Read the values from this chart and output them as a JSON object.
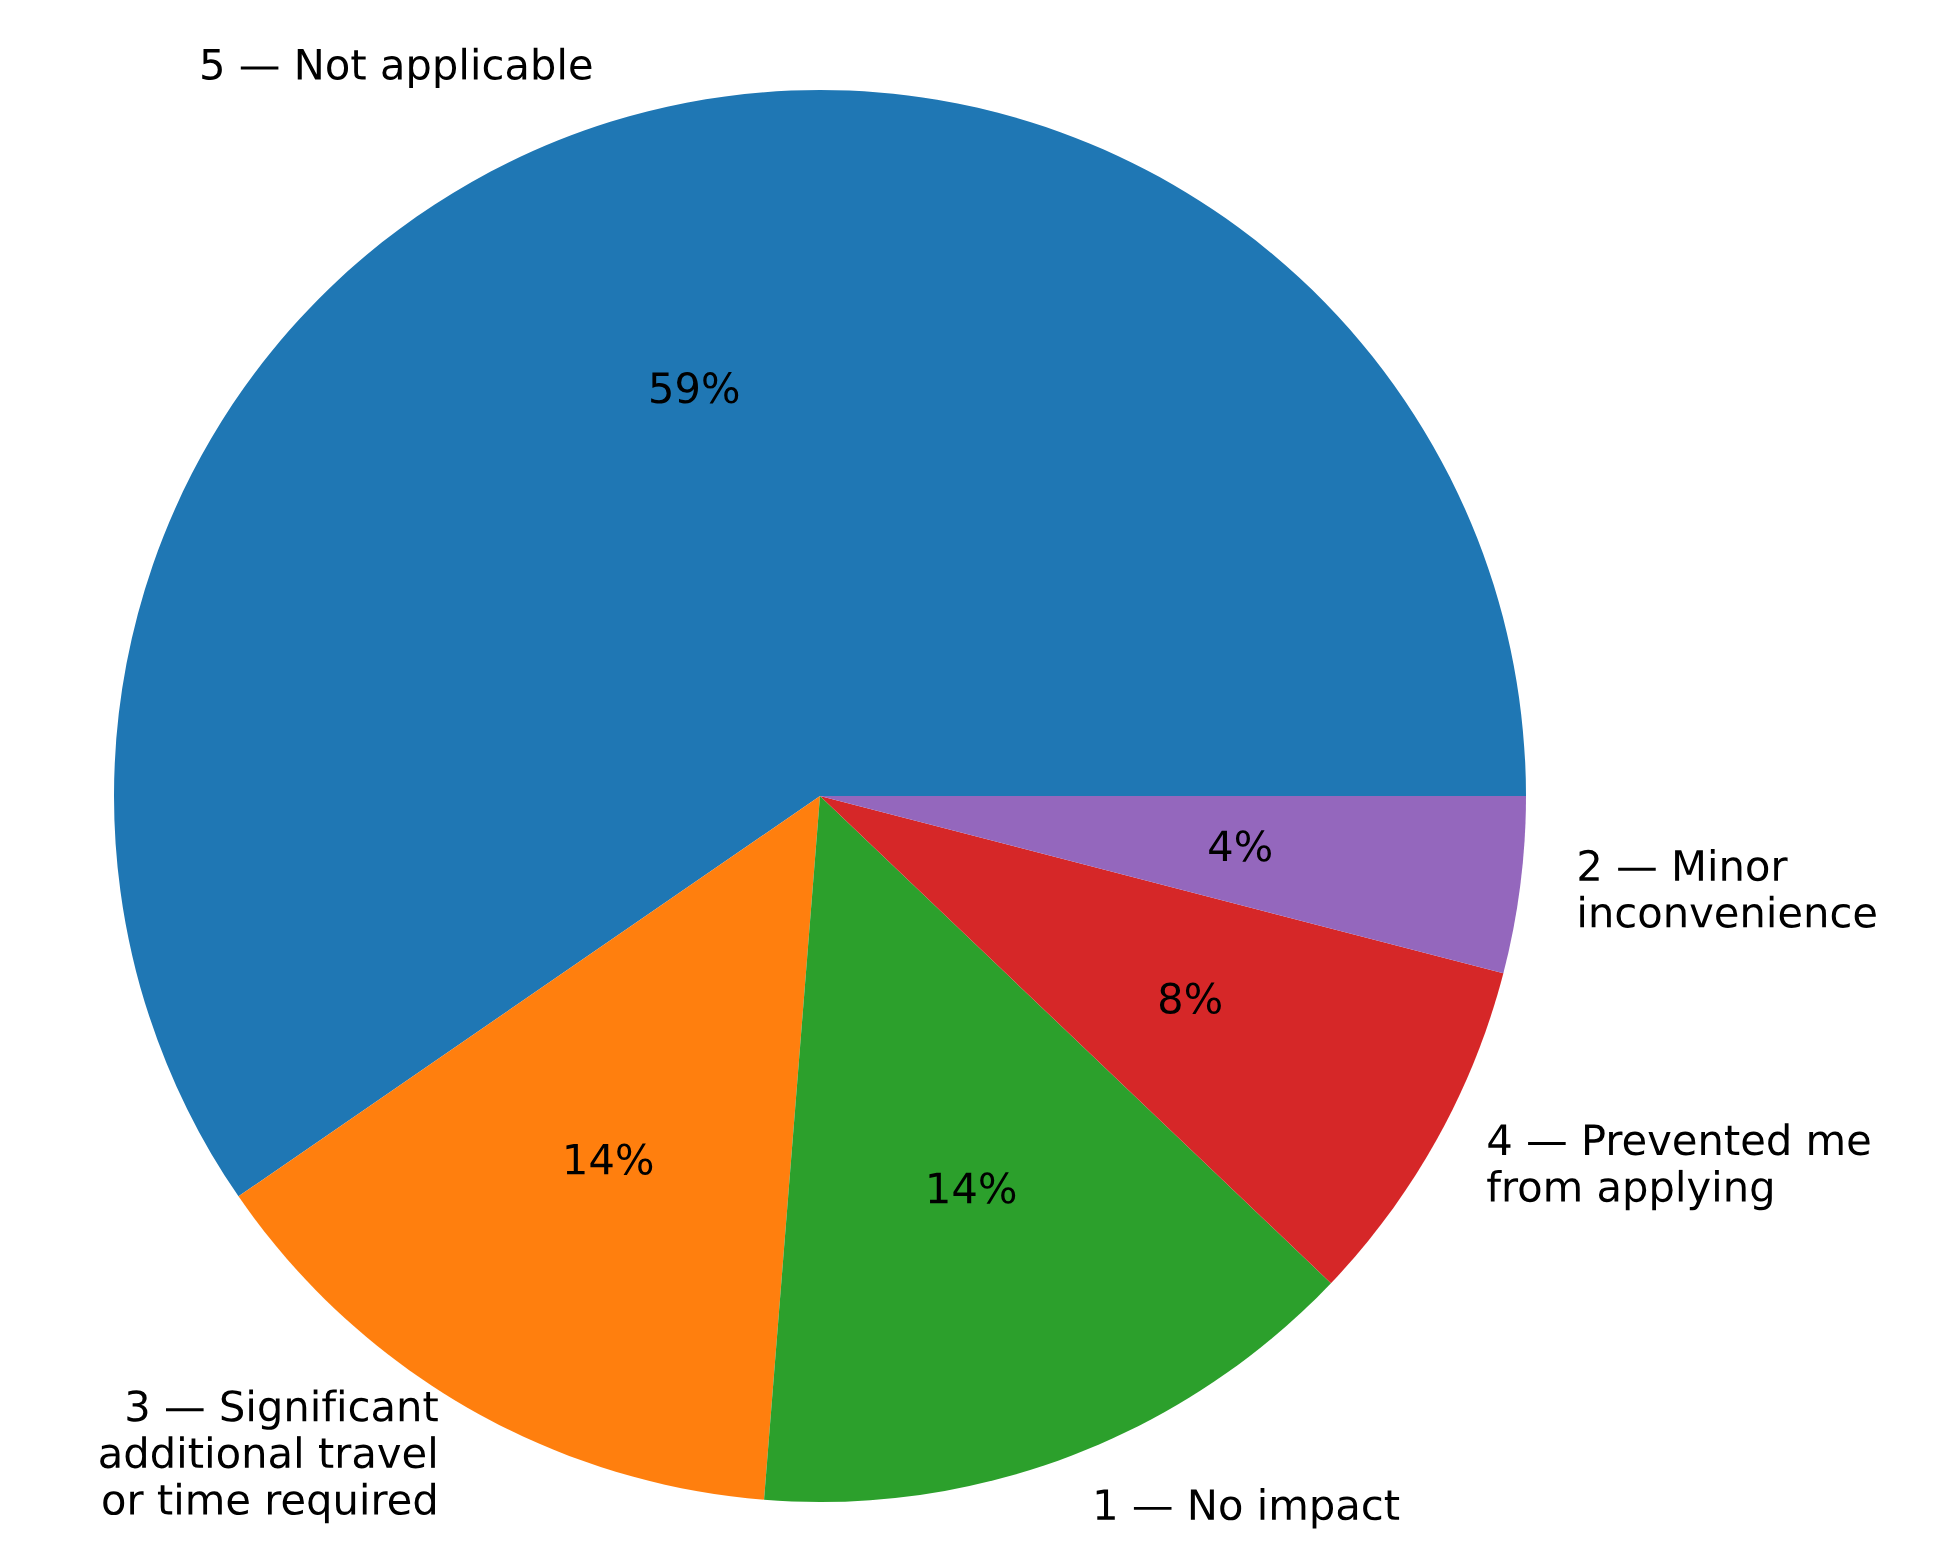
{
  "chart_data": {
    "type": "pie",
    "categories": [
      "5 — Not applicable",
      "3 — Significant\nadditional travel\nor time required",
      "1 — No impact",
      "4 — Prevented me\nfrom applying",
      "2 — Minor\ninconvenience"
    ],
    "values": [
      59,
      14,
      14,
      8,
      4
    ],
    "value_labels": [
      "59%",
      "14%",
      "14%",
      "8%",
      "4%"
    ],
    "colors": [
      "#1f77b4",
      "#ff7f0e",
      "#2ca02c",
      "#d62728",
      "#9467bd"
    ]
  }
}
